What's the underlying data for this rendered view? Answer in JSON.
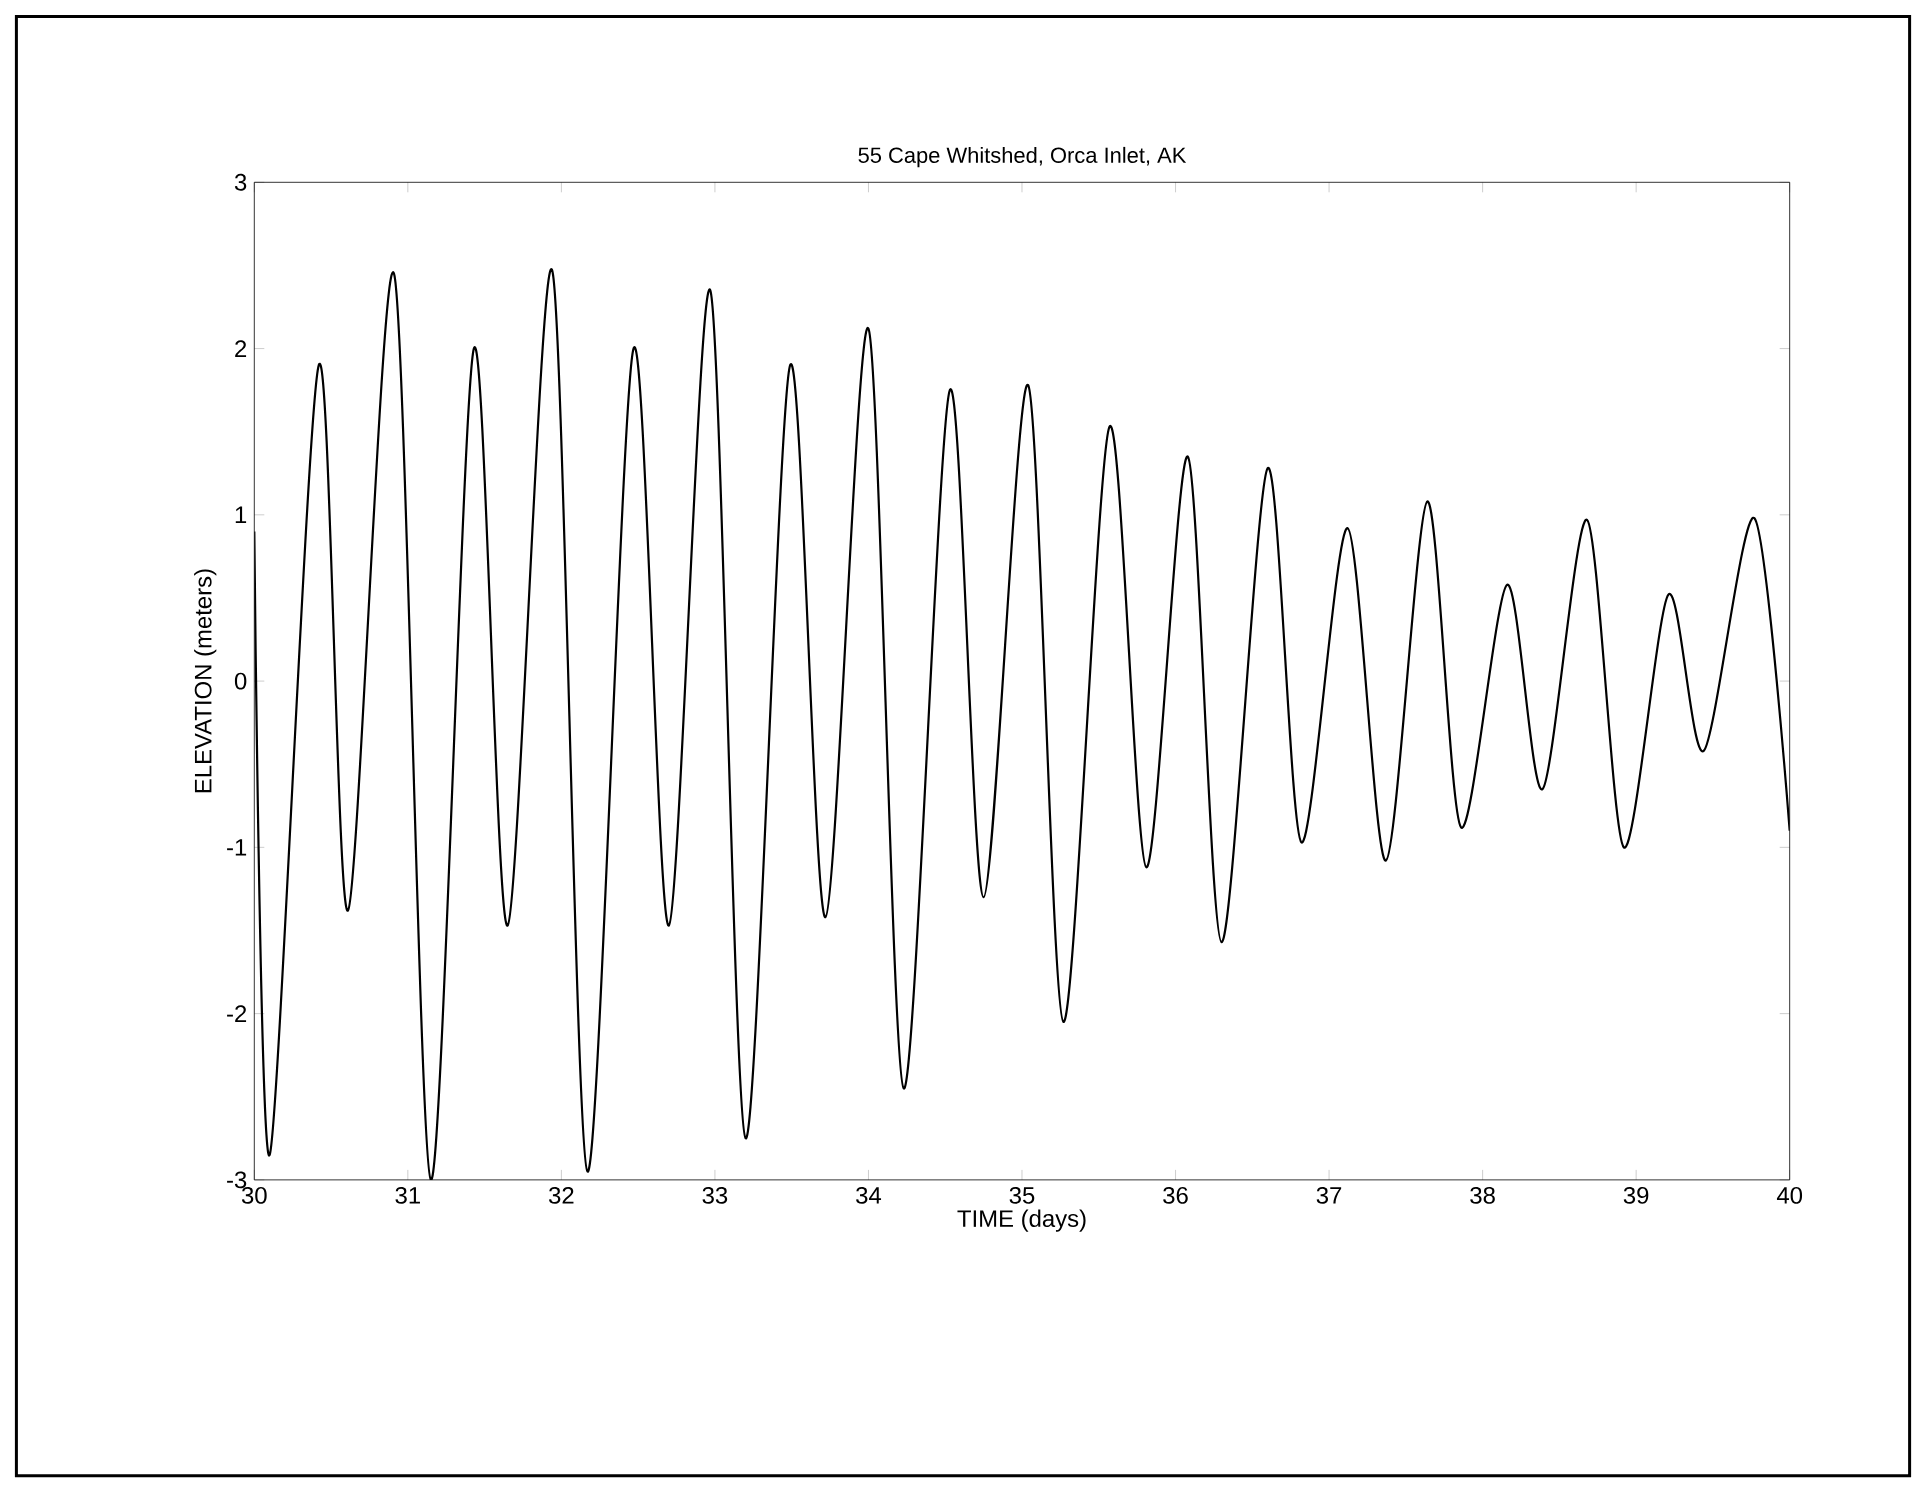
{
  "chart_data": {
    "type": "line",
    "title": "55 Cape Whitshed, Orca Inlet, AK",
    "xlabel": "TIME (days)",
    "ylabel": "ELEVATION (meters)",
    "x": [
      30.0,
      30.1,
      30.42,
      30.61,
      30.91,
      31.15,
      31.43,
      31.65,
      31.94,
      32.17,
      32.47,
      32.7,
      32.97,
      33.2,
      33.49,
      33.72,
      34.0,
      34.23,
      34.53,
      34.75,
      35.04,
      35.27,
      35.57,
      35.81,
      36.08,
      36.3,
      36.6,
      36.82,
      37.12,
      37.37,
      37.64,
      37.86,
      38.16,
      38.39,
      38.68,
      38.92,
      39.21,
      39.44,
      39.77,
      40.0
    ],
    "series": [
      {
        "color": "#000000",
        "values": [
          0.9,
          -2.85,
          1.9,
          -1.38,
          2.45,
          -3.0,
          2.0,
          -1.47,
          2.47,
          -2.95,
          2.0,
          -1.47,
          2.35,
          -2.75,
          1.9,
          -1.42,
          2.12,
          -2.45,
          1.75,
          -1.3,
          1.78,
          -2.05,
          1.53,
          -1.12,
          1.35,
          -1.57,
          1.28,
          -0.97,
          0.92,
          -1.08,
          1.08,
          -0.88,
          0.58,
          -0.65,
          0.97,
          -1.0,
          0.52,
          -0.42,
          0.98,
          -0.9
        ]
      }
    ],
    "xlim": [
      30,
      40
    ],
    "ylim": [
      -3,
      3
    ],
    "xticks": [
      30,
      31,
      32,
      33,
      34,
      35,
      36,
      37,
      38,
      39,
      40
    ],
    "yticks": [
      -3,
      -2,
      -1,
      0,
      1,
      2,
      3
    ],
    "marker": "none",
    "line_style": "solid"
  }
}
